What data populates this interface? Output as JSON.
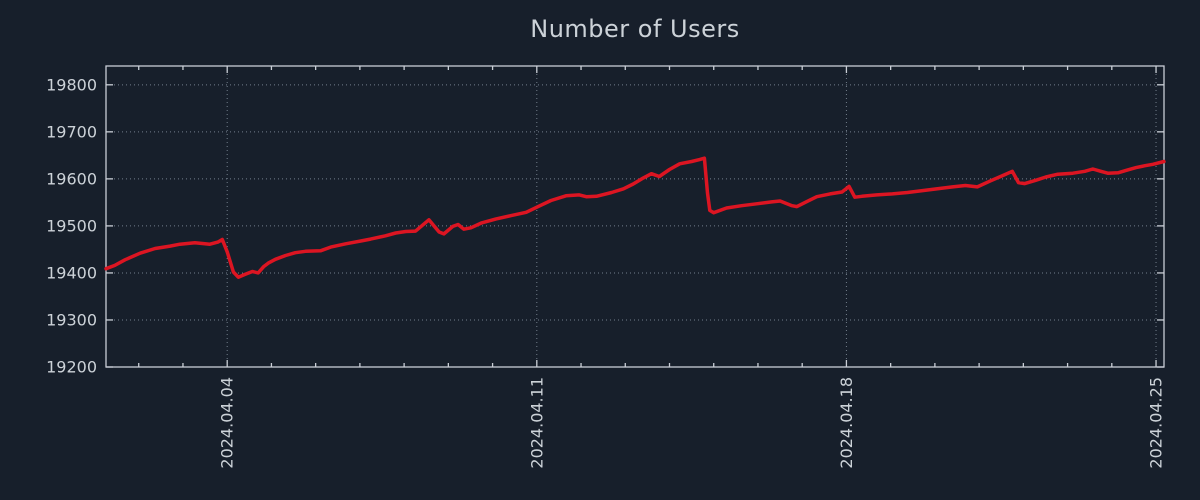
{
  "colors": {
    "background": "#171f2b",
    "text": "#ccd2d8",
    "frame": "#c9ced6",
    "grid": "#8b97a5",
    "series_red": "#dc1522"
  },
  "chart_data": {
    "type": "line",
    "title": "Number of Users",
    "xlabel": "",
    "ylabel": "",
    "legend": {
      "shown": false
    },
    "grid": {
      "shown": true,
      "style": "dotted"
    },
    "x_axis": {
      "unit": "day of April 2024",
      "range": [
        1.26,
        25.18
      ],
      "major_ticks": [
        {
          "day": 4,
          "label": "2024.04.04"
        },
        {
          "day": 11,
          "label": "2024.04.11"
        },
        {
          "day": 18,
          "label": "2024.04.18"
        },
        {
          "day": 25,
          "label": "2024.04.25"
        }
      ],
      "minor_tick_days": [
        2,
        3,
        5,
        6,
        7,
        8,
        9,
        10,
        12,
        13,
        14,
        15,
        16,
        17,
        19,
        20,
        21,
        22,
        23,
        24
      ]
    },
    "y_axis": {
      "range": [
        19200,
        19840
      ],
      "ticks": [
        19200,
        19300,
        19400,
        19500,
        19600,
        19700,
        19800
      ]
    },
    "series": [
      {
        "name": "Number of Users",
        "color": "#dc1522",
        "points": [
          [
            1.26,
            19409
          ],
          [
            1.46,
            19416
          ],
          [
            1.69,
            19428
          ],
          [
            2.03,
            19442
          ],
          [
            2.37,
            19452
          ],
          [
            2.71,
            19457
          ],
          [
            2.93,
            19461
          ],
          [
            3.27,
            19464
          ],
          [
            3.61,
            19461
          ],
          [
            3.8,
            19466
          ],
          [
            3.89,
            19471
          ],
          [
            4.0,
            19445
          ],
          [
            4.14,
            19402
          ],
          [
            4.25,
            19391
          ],
          [
            4.41,
            19397
          ],
          [
            4.57,
            19403
          ],
          [
            4.7,
            19400
          ],
          [
            4.82,
            19413
          ],
          [
            4.93,
            19421
          ],
          [
            5.09,
            19429
          ],
          [
            5.32,
            19437
          ],
          [
            5.54,
            19443
          ],
          [
            5.77,
            19446
          ],
          [
            6.11,
            19447
          ],
          [
            6.34,
            19455
          ],
          [
            6.68,
            19462
          ],
          [
            7.02,
            19468
          ],
          [
            7.24,
            19472
          ],
          [
            7.58,
            19479
          ],
          [
            7.81,
            19485
          ],
          [
            8.04,
            19488
          ],
          [
            8.26,
            19489
          ],
          [
            8.56,
            19513
          ],
          [
            8.79,
            19487
          ],
          [
            8.9,
            19483
          ],
          [
            9.1,
            19499
          ],
          [
            9.22,
            19503
          ],
          [
            9.35,
            19493
          ],
          [
            9.51,
            19496
          ],
          [
            9.74,
            19506
          ],
          [
            10.08,
            19515
          ],
          [
            10.42,
            19522
          ],
          [
            10.76,
            19529
          ],
          [
            11.03,
            19541
          ],
          [
            11.32,
            19554
          ],
          [
            11.66,
            19564
          ],
          [
            11.96,
            19566
          ],
          [
            12.12,
            19562
          ],
          [
            12.35,
            19563
          ],
          [
            12.69,
            19571
          ],
          [
            12.96,
            19579
          ],
          [
            13.18,
            19589
          ],
          [
            13.41,
            19602
          ],
          [
            13.59,
            19611
          ],
          [
            13.77,
            19605
          ],
          [
            14.0,
            19620
          ],
          [
            14.23,
            19632
          ],
          [
            14.5,
            19637
          ],
          [
            14.68,
            19641
          ],
          [
            14.79,
            19644
          ],
          [
            14.86,
            19570
          ],
          [
            14.91,
            19533
          ],
          [
            15.0,
            19528
          ],
          [
            15.29,
            19538
          ],
          [
            15.63,
            19543
          ],
          [
            15.97,
            19547
          ],
          [
            16.31,
            19551
          ],
          [
            16.5,
            19553
          ],
          [
            16.77,
            19543
          ],
          [
            16.88,
            19541
          ],
          [
            17.11,
            19552
          ],
          [
            17.33,
            19562
          ],
          [
            17.63,
            19568
          ],
          [
            17.9,
            19572
          ],
          [
            18.06,
            19584
          ],
          [
            18.19,
            19561
          ],
          [
            18.35,
            19563
          ],
          [
            18.69,
            19566
          ],
          [
            19.04,
            19568
          ],
          [
            19.38,
            19571
          ],
          [
            19.72,
            19575
          ],
          [
            20.06,
            19579
          ],
          [
            20.4,
            19583
          ],
          [
            20.69,
            19586
          ],
          [
            20.96,
            19583
          ],
          [
            21.26,
            19596
          ],
          [
            21.53,
            19607
          ],
          [
            21.75,
            19616
          ],
          [
            21.89,
            19592
          ],
          [
            22.03,
            19590
          ],
          [
            22.28,
            19597
          ],
          [
            22.51,
            19604
          ],
          [
            22.78,
            19610
          ],
          [
            23.12,
            19612
          ],
          [
            23.39,
            19616
          ],
          [
            23.57,
            19621
          ],
          [
            23.75,
            19616
          ],
          [
            23.91,
            19612
          ],
          [
            24.14,
            19613
          ],
          [
            24.36,
            19619
          ],
          [
            24.55,
            19624
          ],
          [
            24.75,
            19628
          ],
          [
            24.93,
            19631
          ],
          [
            25.18,
            19637
          ]
        ]
      }
    ]
  }
}
